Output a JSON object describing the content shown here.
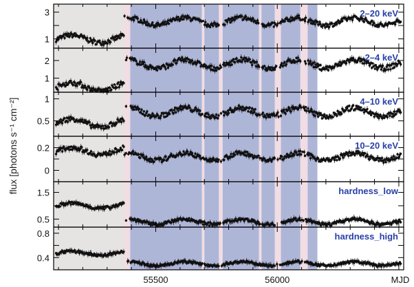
{
  "chart_data": {
    "type": "scatter",
    "ylabel": "flux [photons s⁻¹ cm⁻²]",
    "xlabel": "MJD",
    "xlim": [
      55080,
      56520
    ],
    "x_ticks": [
      55500,
      56000
    ],
    "x_tick_labels": [
      "55500",
      "56000"
    ],
    "colors": {
      "gray_band": "#e6e3e3",
      "blue_band": "#aeb6d8",
      "pink_band": "#f1dde3",
      "points": "#111111",
      "label": "#2840a8"
    },
    "bands": [
      {
        "from": 55080,
        "to": 55370,
        "kind": "gray"
      },
      {
        "from": 55370,
        "to": 55395,
        "kind": "pink"
      },
      {
        "from": 55395,
        "to": 55690,
        "kind": "blue"
      },
      {
        "from": 55690,
        "to": 55700,
        "kind": "pink"
      },
      {
        "from": 55700,
        "to": 55760,
        "kind": "blue"
      },
      {
        "from": 55760,
        "to": 55775,
        "kind": "pink"
      },
      {
        "from": 55775,
        "to": 55925,
        "kind": "blue"
      },
      {
        "from": 55925,
        "to": 55935,
        "kind": "pink"
      },
      {
        "from": 55935,
        "to": 55990,
        "kind": "blue"
      },
      {
        "from": 55990,
        "to": 56015,
        "kind": "pink"
      },
      {
        "from": 56015,
        "to": 56095,
        "kind": "blue"
      },
      {
        "from": 56095,
        "to": 56125,
        "kind": "pink"
      },
      {
        "from": 56125,
        "to": 56165,
        "kind": "blue"
      },
      {
        "from": 56165,
        "to": 56520,
        "kind": "none"
      }
    ],
    "panels": [
      {
        "label": "2–20 keV",
        "ylim": [
          0.3,
          3.6
        ],
        "yticks": [
          1,
          2,
          3
        ],
        "ytick_labels": [
          "1",
          "",
          "3"
        ],
        "hard_level": 1.0,
        "soft_level": 2.3,
        "spread": 0.35
      },
      {
        "label": "2–4 keV",
        "ylim": [
          0.2,
          2.7
        ],
        "yticks": [
          1,
          2
        ],
        "ytick_labels": [
          "1",
          "2"
        ],
        "hard_level": 0.5,
        "soft_level": 1.8,
        "spread": 0.3
      },
      {
        "label": "4–10 keV",
        "ylim": [
          0.15,
          1.15
        ],
        "yticks": [
          0.5,
          1
        ],
        "ytick_labels": [
          "0.5",
          "1"
        ],
        "hard_level": 0.45,
        "soft_level": 0.7,
        "spread": 0.12
      },
      {
        "label": "10–20 keV",
        "ylim": [
          -0.1,
          0.3
        ],
        "yticks": [
          0,
          0.1,
          0.2
        ],
        "ytick_labels": [
          "0",
          "",
          "0.2"
        ],
        "hard_level": 0.17,
        "soft_level": 0.12,
        "spread": 0.04
      },
      {
        "label": "hardness_low",
        "ylim": [
          0.2,
          1.9
        ],
        "yticks": [
          0.5,
          1,
          1.5
        ],
        "ytick_labels": [
          "0.5",
          "",
          "1.5"
        ],
        "hard_level": 1.0,
        "soft_level": 0.4,
        "spread": 0.12
      },
      {
        "label": "hardness_high",
        "ylim": [
          0.2,
          0.9
        ],
        "yticks": [
          0.4,
          0.6,
          0.8
        ],
        "ytick_labels": [
          "0.4",
          "",
          "0.8"
        ],
        "hard_level": 0.47,
        "soft_level": 0.3,
        "spread": 0.04
      }
    ]
  }
}
